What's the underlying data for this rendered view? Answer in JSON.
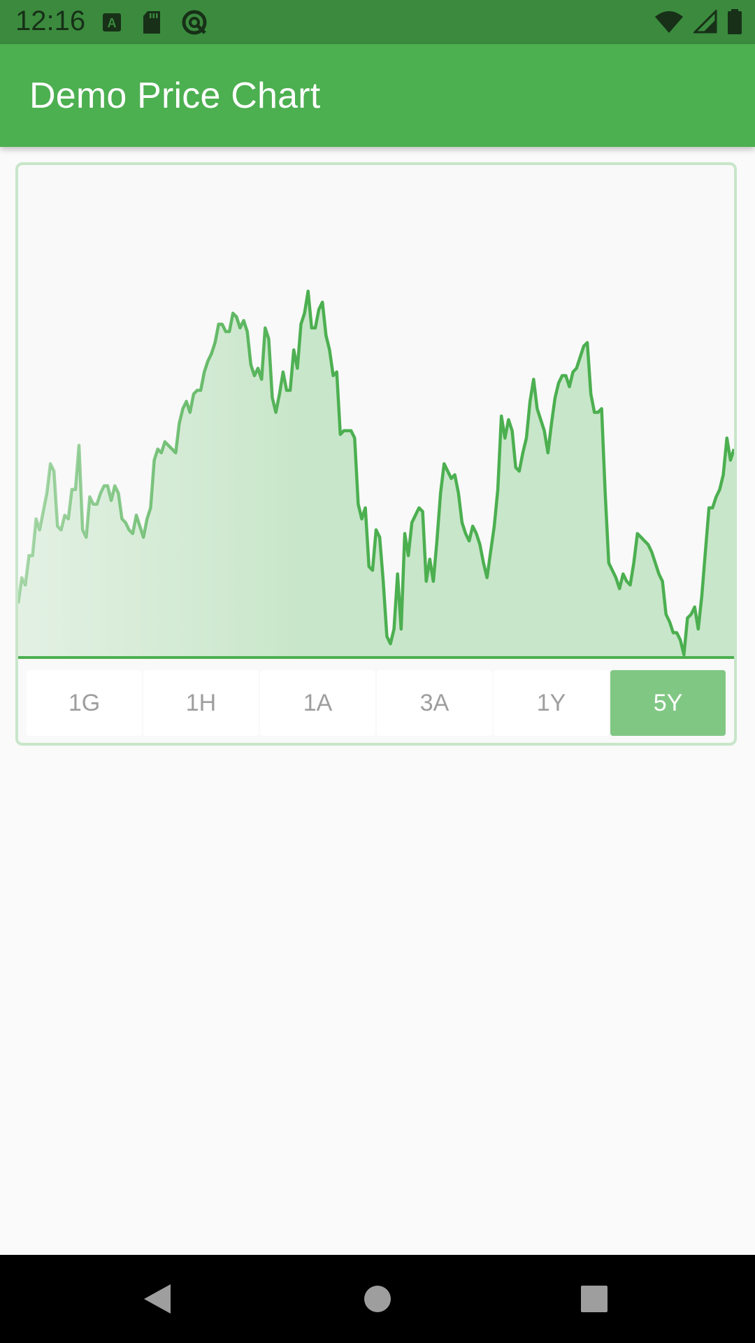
{
  "status_bar": {
    "time": "12:16",
    "left_icons": [
      "font-a-icon",
      "sd-card-icon",
      "data-saver-icon"
    ],
    "right_icons": [
      "wifi-icon",
      "cell-signal-icon",
      "battery-icon"
    ],
    "background": "#3b8a3e"
  },
  "app_bar": {
    "title": "Demo Price Chart",
    "background": "#4caf50"
  },
  "chart_data": {
    "type": "area",
    "title": "",
    "xlabel": "",
    "ylabel": "",
    "grid": false,
    "line_color": "#4caf50",
    "fill_color": "#c8e6c9",
    "ylim": [
      0,
      100
    ],
    "values": [
      14,
      21,
      19,
      27,
      27,
      37,
      34,
      39,
      44,
      52,
      50,
      35,
      34,
      38,
      37,
      45,
      45,
      57,
      34,
      32,
      43,
      41,
      41,
      44,
      46,
      46,
      42,
      46,
      44,
      37,
      36,
      34,
      33,
      38,
      35,
      32,
      37,
      40,
      53,
      56,
      55,
      58,
      57,
      56,
      55,
      63,
      67,
      69,
      66,
      71,
      72,
      72,
      77,
      80,
      82,
      85,
      90,
      90,
      88,
      88,
      93,
      92,
      89,
      91,
      88,
      79,
      76,
      78,
      75,
      89,
      86,
      70,
      66,
      71,
      77,
      72,
      72,
      83,
      78,
      90,
      93,
      99,
      89,
      89,
      94,
      96,
      87,
      83,
      76,
      77,
      60,
      61,
      61,
      61,
      59,
      41,
      37,
      40,
      24,
      23,
      34,
      32,
      20,
      5,
      3,
      7,
      22,
      7,
      33,
      27,
      36,
      38,
      40,
      39,
      20,
      26,
      20,
      31,
      44,
      52,
      50,
      48,
      49,
      44,
      36,
      33,
      31,
      35,
      33,
      30,
      25,
      21,
      28,
      35,
      45,
      65,
      59,
      64,
      61,
      51,
      50,
      55,
      59,
      69,
      75,
      67,
      64,
      61,
      55,
      63,
      70,
      74,
      76,
      76,
      73,
      77,
      78,
      81,
      84,
      85,
      71,
      66,
      66,
      67,
      44,
      25,
      23,
      21,
      18,
      22,
      20,
      19,
      25,
      33,
      32,
      31,
      30,
      28,
      25,
      22,
      20,
      11,
      9,
      6,
      6,
      4,
      0,
      10,
      11,
      13,
      7,
      16,
      28,
      40,
      40,
      43,
      45,
      49,
      59,
      53,
      56
    ]
  },
  "range_selector": {
    "options": [
      "1G",
      "1H",
      "1A",
      "3A",
      "1Y",
      "5Y"
    ],
    "selected_index": 5,
    "active_color": "#81c784"
  },
  "nav_bar": {
    "icons": [
      "back-icon",
      "home-icon",
      "recents-icon"
    ]
  }
}
